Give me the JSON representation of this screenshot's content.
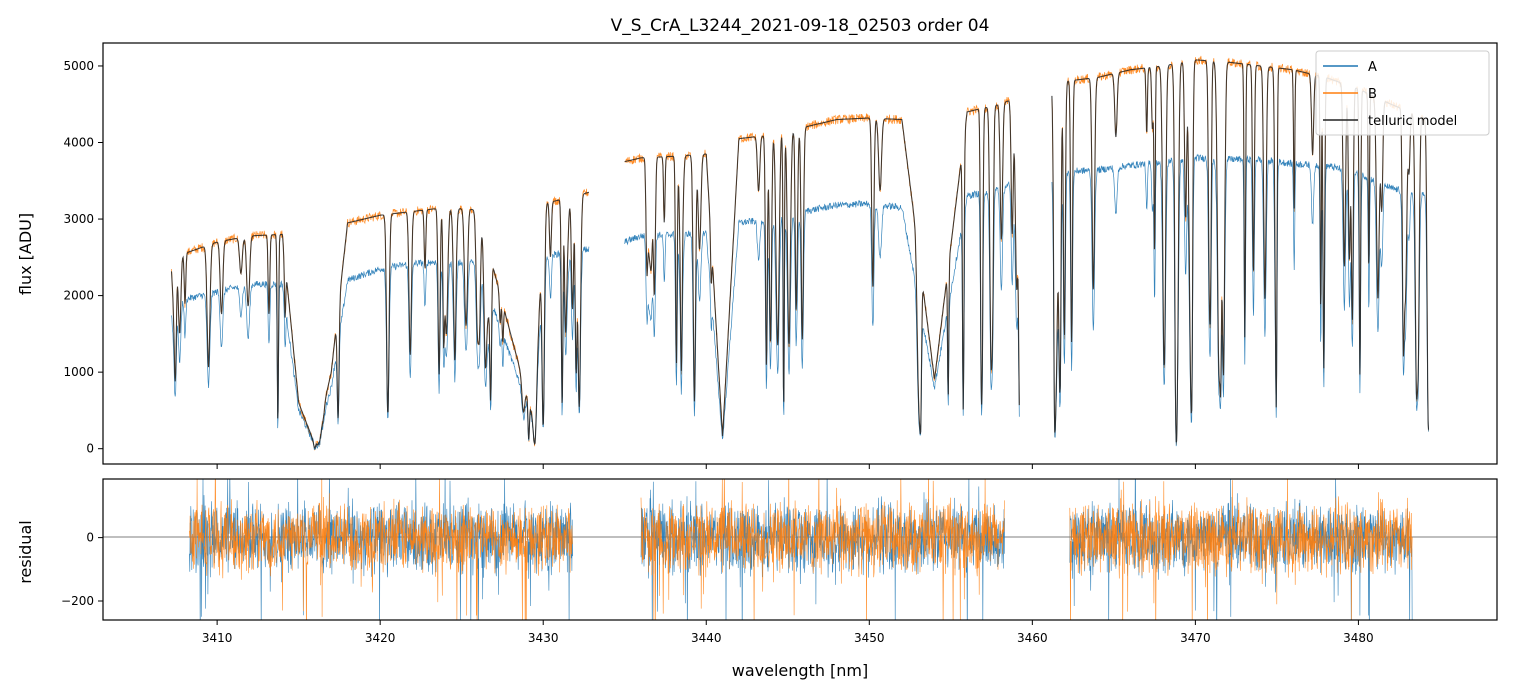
{
  "chart_data": [
    {
      "type": "line",
      "panel": "top",
      "title": "V_S_CrA_L3244_2021-09-18_02503  order 04",
      "xlabel": "",
      "ylabel": "flux [ADU]",
      "xlim": [
        3403,
        3488.5
      ],
      "ylim": [
        -200,
        5300
      ],
      "xticks": [
        3410,
        3420,
        3430,
        3440,
        3450,
        3460,
        3470,
        3480
      ],
      "yticks": [
        0,
        1000,
        2000,
        3000,
        4000,
        5000
      ],
      "ytick_labels": [
        "0",
        "1000",
        "2000",
        "3000",
        "4000",
        "5000"
      ],
      "legend_position": "top-right",
      "colors": {
        "A": "#1f77b4",
        "B": "#ff7f0e",
        "telluric model": "#222222"
      },
      "segments": [
        {
          "x": [
            3407.2,
            3408,
            3410,
            3412,
            3414,
            3415,
            3416,
            3417,
            3418,
            3420,
            3422,
            3424,
            3426,
            3428,
            3429.5,
            3430,
            3432,
            3432.8
          ],
          "A": [
            1900,
            1950,
            2050,
            2150,
            2150,
            500,
            50,
            800,
            2200,
            2350,
            2420,
            2450,
            2430,
            1200,
            300,
            2500,
            2600,
            2600
          ],
          "B": [
            2500,
            2550,
            2700,
            2780,
            2800,
            600,
            50,
            1000,
            2950,
            3050,
            3100,
            3150,
            3120,
            1500,
            300,
            3200,
            3300,
            3350
          ]
        },
        {
          "x": [
            3435,
            3436,
            3438,
            3440,
            3441,
            3442,
            3444,
            3446,
            3448,
            3450,
            3452,
            3454,
            3456,
            3458,
            3459.2
          ],
          "A": [
            2700,
            2780,
            2800,
            2820,
            100,
            2950,
            3000,
            3100,
            3180,
            3200,
            3150,
            800,
            3300,
            3400,
            3500
          ],
          "B": [
            3750,
            3800,
            3820,
            3850,
            150,
            4050,
            4100,
            4200,
            4300,
            4320,
            4300,
            900,
            4400,
            4500,
            4600
          ]
        },
        {
          "x": [
            3461.2,
            3462,
            3464,
            3466,
            3468,
            3470,
            3472,
            3474,
            3476,
            3478,
            3480,
            3482,
            3484.3
          ],
          "A": [
            3600,
            3620,
            3640,
            3700,
            3750,
            3800,
            3780,
            3780,
            3720,
            3700,
            3600,
            3400,
            3300
          ],
          "B": [
            4750,
            4800,
            4850,
            4950,
            5000,
            5080,
            5050,
            5000,
            4950,
            4850,
            4700,
            4500,
            4300
          ]
        }
      ],
      "series": [
        {
          "name": "A"
        },
        {
          "name": "B"
        },
        {
          "name": "telluric model"
        }
      ]
    },
    {
      "type": "line",
      "panel": "bottom",
      "xlabel": "wavelength [nm]",
      "ylabel": "residual",
      "xlim": [
        3403,
        3488.5
      ],
      "ylim": [
        -260,
        185
      ],
      "yticks": [
        -200,
        0
      ],
      "ytick_labels": [
        "−200",
        "0"
      ],
      "xticks": [
        3410,
        3420,
        3430,
        3440,
        3450,
        3460,
        3470,
        3480
      ],
      "segments_x": [
        [
          3408.3,
          3431.8
        ],
        [
          3436.0,
          3458.3
        ],
        [
          3462.3,
          3483.3
        ]
      ],
      "noise_amplitude": 110
    }
  ]
}
